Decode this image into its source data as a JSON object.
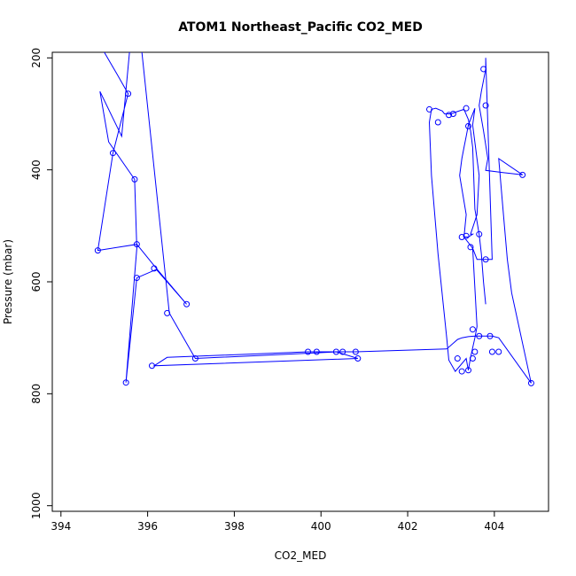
{
  "chart_data": {
    "type": "line",
    "title": "ATOM1 Northeast_Pacific CO2_MED",
    "xlabel": "CO2_MED",
    "ylabel": "Pressure (mbar)",
    "xlim": [
      393.8,
      405.25
    ],
    "ylim": [
      1010,
      190
    ],
    "y_reversed": true,
    "x_ticks": [
      394,
      396,
      398,
      400,
      402,
      404
    ],
    "y_ticks": [
      200,
      400,
      600,
      800,
      1000
    ],
    "grid": false,
    "legend": "none",
    "color": "#0000ff",
    "series": [
      {
        "x": [
          394.6,
          394.8,
          395.0,
          395.3,
          395.55,
          395.2,
          394.85,
          395.75,
          396.2,
          396.9,
          396.2,
          395.75,
          395.5,
          395.75,
          395.7,
          395.1,
          394.9,
          395.4,
          395.6,
          395.8,
          396.5,
          397.1,
          400.4,
          400.55,
          399.9,
          399.7,
          396.45,
          396.15,
          400.85,
          400.35,
          400.35,
          400.8,
          402.9
        ],
        "y": [
          130,
          160,
          190,
          230,
          264,
          370,
          544,
          533,
          576,
          640,
          578,
          593,
          780,
          540,
          417,
          350,
          260,
          340,
          175,
          140,
          656,
          737,
          725,
          725,
          725,
          725,
          735,
          750,
          737,
          725,
          725,
          725,
          720
        ]
      },
      {
        "x": [
          402.9,
          403.15,
          403.25,
          403.4,
          403.55,
          403.65,
          403.8,
          403.95,
          404.1,
          404.85,
          404.4,
          404.3,
          404.2,
          404.1,
          404.65,
          404.2,
          403.8,
          403.85,
          403.75,
          403.65,
          403.7,
          403.8,
          403.8,
          403.95,
          403.6,
          403.5,
          403.3,
          403.4,
          403.5,
          403.45,
          403.6,
          403.65,
          403.5,
          403.55,
          403.4,
          403.35,
          403.3,
          403.25,
          403.2,
          403.35,
          403.3,
          403.5,
          403.6,
          403.55,
          403.45,
          403.4,
          403.35,
          403.1,
          402.95,
          402.9,
          402.7,
          402.55,
          402.5,
          402.55,
          402.65,
          402.8,
          402.85,
          403.0,
          403.1,
          403.3,
          403.4,
          403.45,
          403.5,
          403.55,
          403.65,
          403.7,
          403.75,
          403.8
        ],
        "y": [
          720,
          703,
          700,
          698,
          697,
          697,
          697,
          697,
          700,
          781,
          620,
          560,
          470,
          380,
          409,
          405,
          401,
          380,
          330,
          285,
          260,
          220,
          200,
          560,
          560,
          540,
          520,
          520,
          515,
          515,
          480,
          410,
          320,
          290,
          320,
          340,
          360,
          380,
          410,
          480,
          520,
          540,
          680,
          700,
          735,
          758,
          737,
          760,
          740,
          700,
          550,
          410,
          315,
          292,
          290,
          295,
          300,
          300,
          297,
          292,
          310,
          330,
          360,
          470,
          515,
          550,
          600,
          640
        ]
      }
    ],
    "points": {
      "x": [
        395.55,
        395.2,
        395.7,
        394.85,
        395.75,
        395.75,
        396.15,
        396.9,
        396.45,
        395.5,
        396.1,
        397.1,
        399.7,
        399.9,
        400.35,
        400.5,
        400.8,
        400.85,
        402.5,
        402.7,
        402.95,
        403.05,
        403.35,
        403.4,
        403.25,
        403.35,
        403.45,
        403.65,
        403.5,
        403.8,
        403.8,
        403.75,
        404.65,
        403.15,
        403.25,
        403.4,
        403.5,
        403.55,
        403.65,
        403.9,
        404.1,
        403.95,
        404.85
      ],
      "y": [
        264,
        370,
        417,
        544,
        533,
        593,
        576,
        640,
        656,
        780,
        750,
        737,
        725,
        725,
        725,
        725,
        725,
        737,
        292,
        315,
        302,
        300,
        290,
        322,
        520,
        518,
        538,
        515,
        685,
        560,
        285,
        220,
        409,
        737,
        760,
        758,
        737,
        725,
        697,
        697,
        725,
        725,
        781
      ]
    }
  }
}
